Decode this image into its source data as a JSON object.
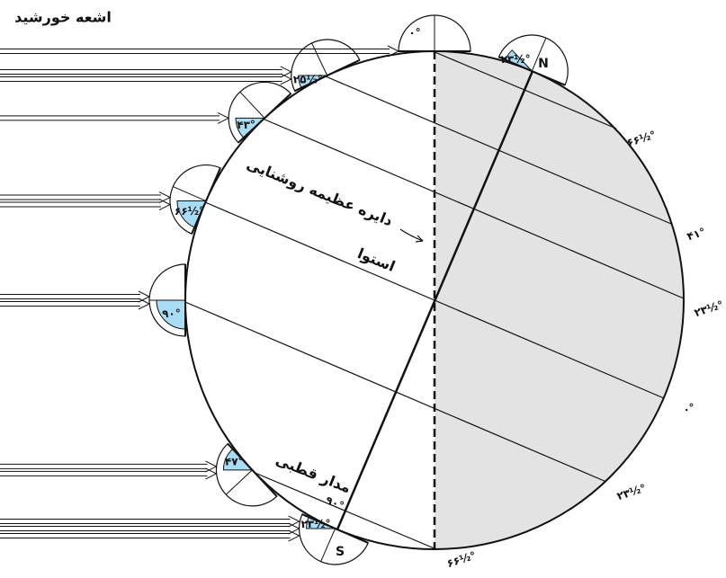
{
  "title": "اشعه خورشید",
  "labels": {
    "terminator": "دایره عظیمه روشنایی",
    "equator": "استوا",
    "polar_circle": "مدار قطبی",
    "north": "N",
    "south": "S"
  },
  "latitudes": [
    "۶۶½°",
    "۴۱°",
    "۲۳½°",
    "۰°",
    "۲۳½°",
    "۶۶½°"
  ],
  "angles": [
    "۰°",
    "۲۳½°",
    "۲۵½°",
    "۴۳°",
    "۶۶½°",
    "۹۰°",
    "۴۷°",
    "۲۳½°"
  ],
  "south_angle": "۹۰°"
}
